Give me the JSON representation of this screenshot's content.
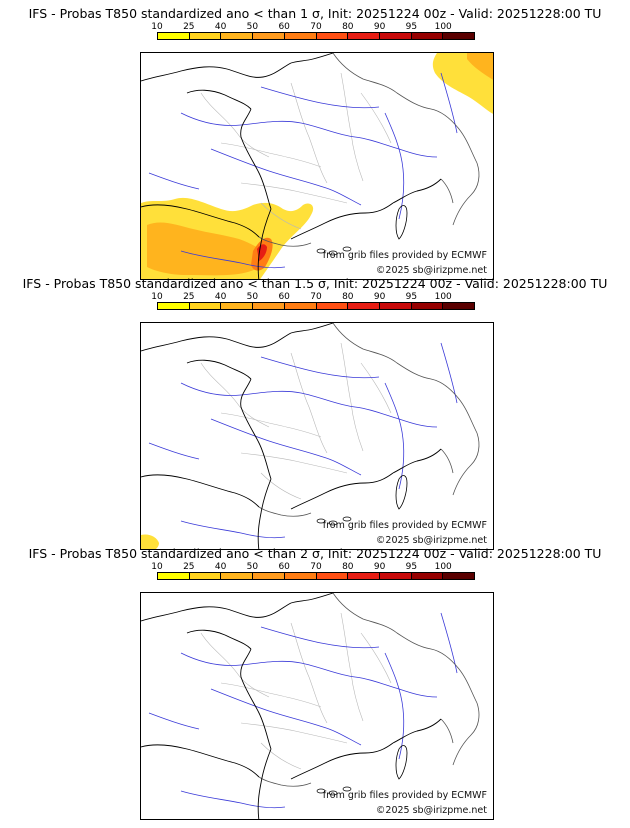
{
  "legend": {
    "labels": [
      "10",
      "25",
      "40",
      "50",
      "60",
      "70",
      "80",
      "90",
      "95",
      "100"
    ],
    "colors": [
      "#ffff00",
      "#ffd21e",
      "#ffb41e",
      "#ff9b1e",
      "#ff7d14",
      "#ff5014",
      "#e61e14",
      "#c80a0a",
      "#960000",
      "#5a0000"
    ]
  },
  "panels": [
    {
      "title": "IFS - Probas T850  standardized ano < than 1 σ, Init: 20251224 00z - Valid: 20251228:00 TU",
      "probability_areas": [
        "south-west France and northern Spain",
        "south-west Pyrenees foothills",
        "north-east corner (Germany/Luxembourg)"
      ]
    },
    {
      "title": "IFS - Probas T850  standardized ano < than 1.5 σ, Init: 20251224 00z - Valid: 20251228:00 TU",
      "probability_areas": [
        "small patch near bottom-left corner"
      ]
    },
    {
      "title": "IFS - Probas T850  standardized ano < than 2 σ, Init: 20251224 00z - Valid: 20251228:00 TU",
      "probability_areas": []
    }
  ],
  "credits": {
    "source": "from grib files provided by ECMWF",
    "copyright": "©2025 sb@irizpme.net"
  }
}
